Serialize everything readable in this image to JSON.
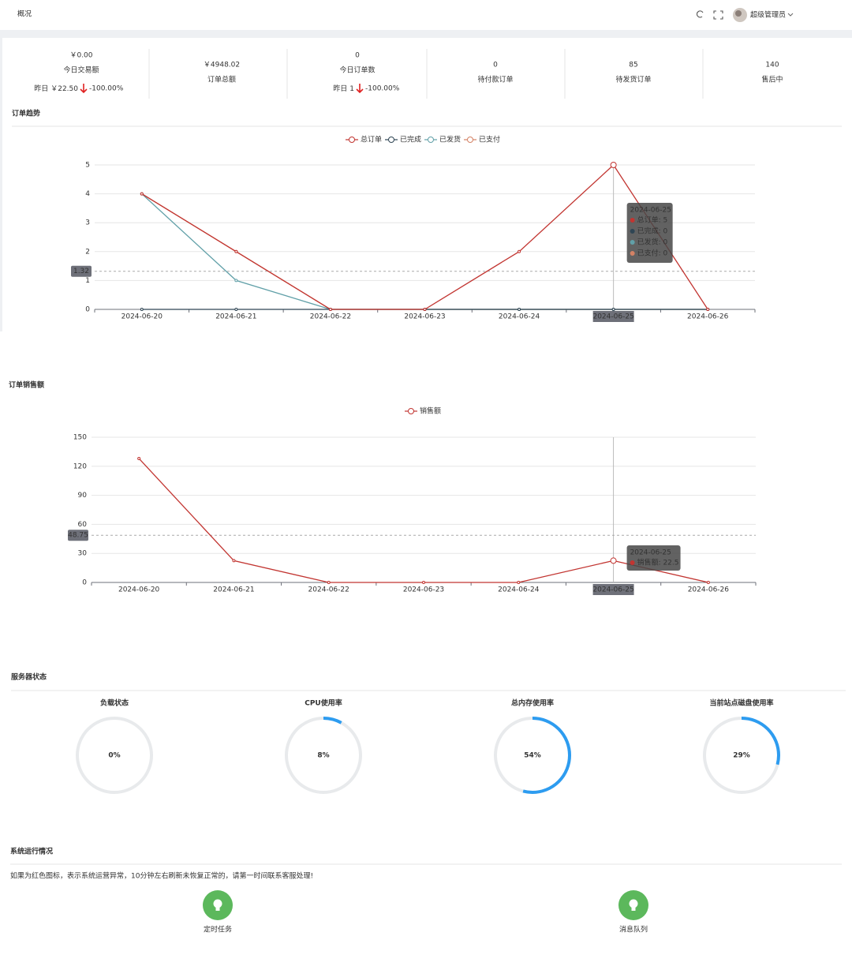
{
  "header": {
    "title": "概况",
    "user": "超级管理员"
  },
  "stats": [
    {
      "value": "￥0.00",
      "label": "今日交易额",
      "compare": {
        "label": "昨日",
        "value": "￥22.50",
        "change": "-100.00%"
      }
    },
    {
      "value": "￥4948.02",
      "label": "订单总额"
    },
    {
      "value": 0,
      "label": "今日订单数",
      "compare": {
        "label": "昨日",
        "value": 1,
        "change": "-100.00%"
      }
    },
    {
      "value": 0,
      "label": "待付款订单"
    },
    {
      "value": 85,
      "label": "待发货订单"
    },
    {
      "value": 140,
      "label": "售后中"
    }
  ],
  "chart_data": [
    {
      "type": "line",
      "title": "订单趋势",
      "categories": [
        "2024-06-20",
        "2024-06-21",
        "2024-06-22",
        "2024-06-23",
        "2024-06-24",
        "2024-06-25",
        "2024-06-26"
      ],
      "series": [
        {
          "name": "总订单",
          "color": "#c23531",
          "values": [
            4,
            2,
            0,
            0,
            2,
            5,
            0
          ]
        },
        {
          "name": "已完成",
          "color": "#2f4554",
          "values": [
            0,
            0,
            0,
            0,
            0,
            0,
            0
          ]
        },
        {
          "name": "已发货",
          "color": "#61a0a8",
          "values": [
            4,
            1,
            0,
            0,
            0,
            0,
            0
          ]
        },
        {
          "name": "已支付",
          "color": "#d48265",
          "values": [
            4,
            2,
            0,
            0,
            0,
            0,
            0
          ]
        }
      ],
      "ylim": [
        0,
        5
      ],
      "yticks": [
        0,
        1,
        2,
        3,
        4,
        5
      ],
      "grid": true,
      "pointer_value": 1.32,
      "tooltip": {
        "title": "2024-06-25",
        "items": [
          "总订单: 5",
          "已完成: 0",
          "已发货: 0",
          "已支付: 0"
        ]
      }
    },
    {
      "type": "line",
      "title": "订单销售额",
      "categories": [
        "2024-06-20",
        "2024-06-21",
        "2024-06-22",
        "2024-06-23",
        "2024-06-24",
        "2024-06-25",
        "2024-06-26"
      ],
      "series": [
        {
          "name": "销售额",
          "color": "#c23531",
          "values": [
            128,
            22.5,
            0,
            0,
            0,
            22.5,
            0
          ]
        }
      ],
      "ylim": [
        0,
        150
      ],
      "yticks": [
        0,
        30,
        60,
        90,
        120,
        150
      ],
      "grid": true,
      "pointer_value": 48.75,
      "tooltip": {
        "title": "2024-06-25",
        "items": [
          "销售额: 22.5"
        ]
      }
    }
  ],
  "server_status": {
    "title": "服务器状态",
    "color": "#2d9cf0",
    "gauges": [
      {
        "name": "负载状态",
        "value": 0,
        "label": "0%"
      },
      {
        "name": "CPU使用率",
        "value": 8,
        "label": "8%"
      },
      {
        "name": "总内存使用率",
        "value": 54,
        "label": "54%"
      },
      {
        "name": "当前站点磁盘使用率",
        "value": 29,
        "label": "29%"
      }
    ]
  },
  "system": {
    "title": "系统运行情况",
    "note": "如果为红色图标，表示系统运营异常，10分钟左右刷新未恢复正常的，请第一时间联系客服处理!",
    "items": [
      "定时任务",
      "消息队列"
    ]
  }
}
